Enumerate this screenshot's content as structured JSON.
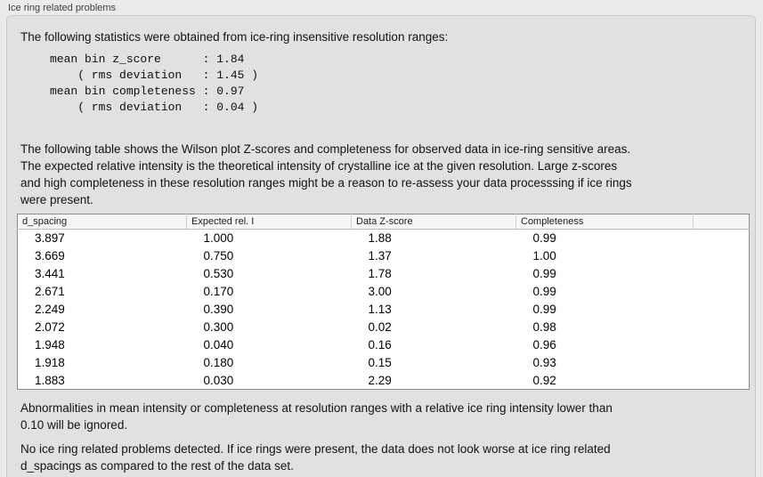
{
  "panel": {
    "title": "Ice ring related problems",
    "intro": "The following statistics were obtained from ice-ring insensitive resolution ranges:",
    "stats_block": "mean bin z_score      : 1.84\n    ( rms deviation   : 1.45 )\nmean bin completeness : 0.97\n    ( rms deviation   : 0.04 )",
    "table_description": "The following table shows the Wilson plot Z-scores and completeness for observed data in ice-ring sensitive areas.\nThe expected relative intensity is the theoretical intensity of crystalline ice at the given resolution. Large z-scores\nand high completeness in these resolution ranges might be a reason to re-assess your data processsing if ice rings\nwere present.",
    "table": {
      "columns": [
        "d_spacing",
        "Expected rel. I",
        "Data Z-score",
        "Completeness"
      ],
      "rows": [
        [
          "3.897",
          "1.000",
          "1.88",
          "0.99"
        ],
        [
          "3.669",
          "0.750",
          "1.37",
          "1.00"
        ],
        [
          "3.441",
          "0.530",
          "1.78",
          "0.99"
        ],
        [
          "2.671",
          "0.170",
          "3.00",
          "0.99"
        ],
        [
          "2.249",
          "0.390",
          "1.13",
          "0.99"
        ],
        [
          "2.072",
          "0.300",
          "0.02",
          "0.98"
        ],
        [
          "1.948",
          "0.040",
          "0.16",
          "0.96"
        ],
        [
          "1.918",
          "0.180",
          "0.15",
          "0.93"
        ],
        [
          "1.883",
          "0.030",
          "2.29",
          "0.92"
        ]
      ]
    },
    "note_ignore": "Abnormalities in mean intensity or completeness at resolution ranges with a relative ice ring intensity lower than\n0.10 will be ignored.",
    "conclusion": "No ice ring related problems detected. If ice rings were present, the data does not look worse at ice ring related\nd_spacings as compared to the rest of the data set."
  }
}
